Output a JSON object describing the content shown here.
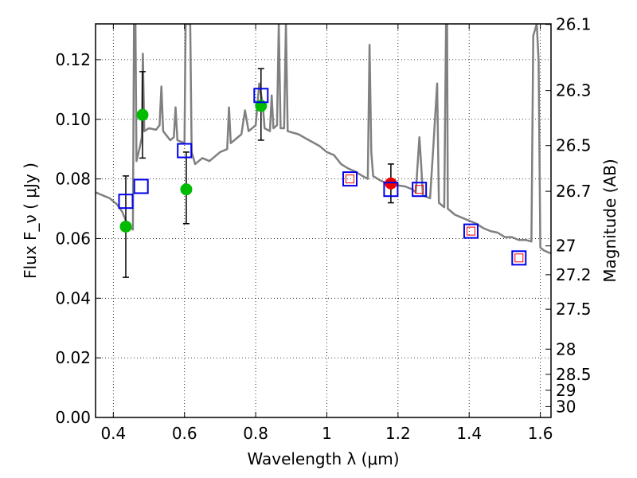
{
  "chart_data": {
    "type": "scatter",
    "xlabel": "Wavelength  λ (μm)",
    "ylabel_left": "Flux  F_ν  ( μJy )",
    "ylabel_right": "Magnitude (AB)",
    "xlim": [
      0.35,
      1.63
    ],
    "ylim": [
      0.0,
      0.132
    ],
    "grid": true,
    "x_ticks": [
      0.4,
      0.6,
      0.8,
      1.0,
      1.2,
      1.4,
      1.6
    ],
    "x_tick_labels": [
      "0.4",
      "0.6",
      "0.8",
      "1",
      "1.2",
      "1.4",
      "1.6"
    ],
    "y_ticks": [
      0.0,
      0.02,
      0.04,
      0.06,
      0.08,
      0.1,
      0.12
    ],
    "y_tick_labels": [
      "0.00",
      "0.02",
      "0.04",
      "0.06",
      "0.08",
      "0.10",
      "0.12"
    ],
    "right_ticks": [
      {
        "label": "26.1",
        "mag": 26.1
      },
      {
        "label": "26.3",
        "mag": 26.3
      },
      {
        "label": "26.5",
        "mag": 26.5
      },
      {
        "label": "26.7",
        "mag": 26.7
      },
      {
        "label": "27",
        "mag": 27.0
      },
      {
        "label": "27.2",
        "mag": 27.2
      },
      {
        "label": "27.5",
        "mag": 27.5
      },
      {
        "label": "28",
        "mag": 28.0
      },
      {
        "label": "28.5",
        "mag": 28.5
      },
      {
        "label": "29",
        "mag": 29.0
      },
      {
        "label": "30",
        "mag": 30.0
      }
    ],
    "model_spectrum": {
      "color": "#808080",
      "points": [
        [
          0.35,
          0.0755
        ],
        [
          0.37,
          0.0745
        ],
        [
          0.39,
          0.0735
        ],
        [
          0.41,
          0.0715
        ],
        [
          0.425,
          0.069
        ],
        [
          0.435,
          0.066
        ],
        [
          0.445,
          0.064
        ],
        [
          0.455,
          0.063
        ],
        [
          0.458,
          0.132
        ],
        [
          0.462,
          0.132
        ],
        [
          0.465,
          0.086
        ],
        [
          0.475,
          0.091
        ],
        [
          0.48,
          0.094
        ],
        [
          0.483,
          0.122
        ],
        [
          0.487,
          0.096
        ],
        [
          0.5,
          0.097
        ],
        [
          0.52,
          0.0965
        ],
        [
          0.53,
          0.098
        ],
        [
          0.535,
          0.111
        ],
        [
          0.54,
          0.096
        ],
        [
          0.56,
          0.093
        ],
        [
          0.57,
          0.094
        ],
        [
          0.575,
          0.104
        ],
        [
          0.58,
          0.093
        ],
        [
          0.6,
          0.092
        ],
        [
          0.603,
          0.132
        ],
        [
          0.608,
          0.132
        ],
        [
          0.612,
          0.132
        ],
        [
          0.616,
          0.132
        ],
        [
          0.62,
          0.089
        ],
        [
          0.63,
          0.085
        ],
        [
          0.65,
          0.087
        ],
        [
          0.67,
          0.086
        ],
        [
          0.7,
          0.089
        ],
        [
          0.72,
          0.09
        ],
        [
          0.725,
          0.104
        ],
        [
          0.73,
          0.092
        ],
        [
          0.74,
          0.093
        ],
        [
          0.76,
          0.095
        ],
        [
          0.77,
          0.103
        ],
        [
          0.78,
          0.096
        ],
        [
          0.79,
          0.097
        ],
        [
          0.8,
          0.098
        ],
        [
          0.81,
          0.112
        ],
        [
          0.82,
          0.105
        ],
        [
          0.825,
          0.097
        ],
        [
          0.84,
          0.096
        ],
        [
          0.845,
          0.108
        ],
        [
          0.85,
          0.097
        ],
        [
          0.86,
          0.098
        ],
        [
          0.865,
          0.132
        ],
        [
          0.87,
          0.097
        ],
        [
          0.88,
          0.097
        ],
        [
          0.885,
          0.132
        ],
        [
          0.89,
          0.096
        ],
        [
          0.92,
          0.095
        ],
        [
          0.95,
          0.093
        ],
        [
          0.98,
          0.091
        ],
        [
          1.0,
          0.089
        ],
        [
          1.02,
          0.088
        ],
        [
          1.03,
          0.0865
        ],
        [
          1.04,
          0.085
        ],
        [
          1.06,
          0.0835
        ],
        [
          1.08,
          0.0825
        ],
        [
          1.1,
          0.081
        ],
        [
          1.115,
          0.08
        ],
        [
          1.12,
          0.125
        ],
        [
          1.125,
          0.089
        ],
        [
          1.13,
          0.081
        ],
        [
          1.15,
          0.0795
        ],
        [
          1.17,
          0.0785
        ],
        [
          1.19,
          0.078
        ],
        [
          1.22,
          0.0775
        ],
        [
          1.24,
          0.0765
        ],
        [
          1.25,
          0.0755
        ],
        [
          1.26,
          0.094
        ],
        [
          1.265,
          0.085
        ],
        [
          1.27,
          0.0745
        ],
        [
          1.29,
          0.0735
        ],
        [
          1.3,
          0.092
        ],
        [
          1.31,
          0.112
        ],
        [
          1.315,
          0.072
        ],
        [
          1.33,
          0.0705
        ],
        [
          1.335,
          0.132
        ],
        [
          1.338,
          0.132
        ],
        [
          1.34,
          0.07
        ],
        [
          1.36,
          0.068
        ],
        [
          1.38,
          0.067
        ],
        [
          1.4,
          0.066
        ],
        [
          1.42,
          0.065
        ],
        [
          1.44,
          0.0635
        ],
        [
          1.46,
          0.0625
        ],
        [
          1.48,
          0.062
        ],
        [
          1.5,
          0.0605
        ],
        [
          1.52,
          0.0605
        ],
        [
          1.54,
          0.0595
        ],
        [
          1.56,
          0.0595
        ],
        [
          1.575,
          0.059
        ],
        [
          1.58,
          0.128
        ],
        [
          1.59,
          0.132
        ],
        [
          1.595,
          0.12
        ],
        [
          1.6,
          0.057
        ],
        [
          1.61,
          0.056
        ],
        [
          1.63,
          0.055
        ]
      ]
    },
    "series": [
      {
        "marker": "circle",
        "color": "#00bb00",
        "points": [
          {
            "x": 0.435,
            "y": 0.064,
            "yerr": [
              0.047,
              0.081
            ]
          },
          {
            "x": 0.482,
            "y": 0.1015,
            "yerr": [
              0.087,
              0.116
            ]
          },
          {
            "x": 0.605,
            "y": 0.0765,
            "yerr": [
              0.065,
              0.089
            ]
          },
          {
            "x": 0.815,
            "y": 0.1045,
            "yerr": [
              0.093,
              0.117
            ]
          }
        ]
      },
      {
        "marker": "circle",
        "color": "#ee0000",
        "points": [
          {
            "x": 1.18,
            "y": 0.0785,
            "yerr": [
              0.072,
              0.085
            ]
          }
        ]
      },
      {
        "marker": "square-open",
        "color": "#0000ee",
        "points": [
          {
            "x": 0.435,
            "y": 0.0725
          },
          {
            "x": 0.478,
            "y": 0.0775
          },
          {
            "x": 0.6,
            "y": 0.0895
          },
          {
            "x": 0.815,
            "y": 0.108
          },
          {
            "x": 1.065,
            "y": 0.08
          },
          {
            "x": 1.18,
            "y": 0.0765
          },
          {
            "x": 1.26,
            "y": 0.0765
          },
          {
            "x": 1.405,
            "y": 0.0625
          },
          {
            "x": 1.54,
            "y": 0.0535
          }
        ]
      },
      {
        "marker": "square-open-small",
        "color": "#ee0000",
        "points": [
          {
            "x": 1.065,
            "y": 0.08
          },
          {
            "x": 1.26,
            "y": 0.0765
          },
          {
            "x": 1.405,
            "y": 0.0625
          },
          {
            "x": 1.54,
            "y": 0.0535
          }
        ]
      }
    ]
  }
}
